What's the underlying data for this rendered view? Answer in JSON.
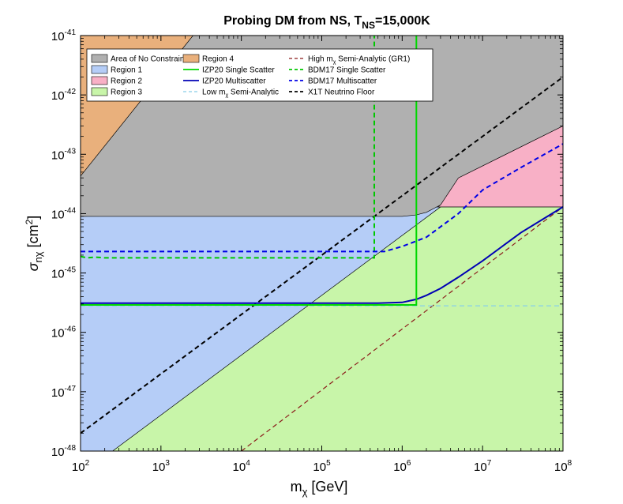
{
  "chart_data": {
    "type": "area",
    "title": {
      "main": "Probing DM from NS, T",
      "sub": "NS",
      "tail": "=15,000K"
    },
    "xaxis": {
      "label_main": "m",
      "label_sub": "χ",
      "label_tail": " [GeV]",
      "scale": "log",
      "lim": [
        100,
        100000000
      ],
      "tick_base": "10",
      "tick_exponents": [
        "2",
        "3",
        "4",
        "5",
        "6",
        "7",
        "8"
      ]
    },
    "yaxis": {
      "label_sigma": "σ",
      "label_sub": "nχ",
      "label_unit_open": " [cm",
      "label_unit_sup": "2",
      "label_unit_close": "]",
      "scale": "log",
      "lim": [
        1e-48,
        1e-41
      ],
      "tick_base": "10",
      "tick_exponents": [
        "-48",
        "-47",
        "-46",
        "-45",
        "-44",
        "-43",
        "-42",
        "-41"
      ]
    },
    "legend": {
      "placement": "top",
      "items": [
        {
          "key": "no-constraints",
          "kind": "patch",
          "label": "Area of No Constraints"
        },
        {
          "key": "region4",
          "kind": "patch",
          "label": "Region 4"
        },
        {
          "key": "high-semi",
          "kind": "line",
          "label_main": "High m",
          "label_sub": "χ",
          "label_tail": " Semi-Analytic (GR1)"
        },
        {
          "key": "region1",
          "kind": "patch",
          "label": "Region 1"
        },
        {
          "key": "izp-single",
          "kind": "line",
          "label": "IZP20 Single Scatter"
        },
        {
          "key": "bdm-single",
          "kind": "line",
          "label": "BDM17 Single Scatter"
        },
        {
          "key": "region2",
          "kind": "patch",
          "label": "Region 2"
        },
        {
          "key": "izp-multi",
          "kind": "line",
          "label": "IZP20 Multiscatter"
        },
        {
          "key": "bdm-multi",
          "kind": "line",
          "label": "BDM17 Multiscatter"
        },
        {
          "key": "region3",
          "kind": "patch",
          "label": "Region 3"
        },
        {
          "key": "low-semi",
          "kind": "line",
          "label_main": "Low m",
          "label_sub": "χ",
          "label_tail": " Semi-Analytic"
        },
        {
          "key": "x1t",
          "kind": "line",
          "label": "X1T Neutrino Floor"
        }
      ]
    },
    "regions": [
      {
        "key": "region3",
        "color": "#c8f5a9",
        "polygon": [
          [
            100,
            1e-48
          ],
          [
            100000000,
            1e-48
          ],
          [
            100000000,
            1.3e-44
          ],
          [
            3000000,
            1.3e-44
          ],
          [
            250,
            1e-48
          ]
        ]
      },
      {
        "key": "region1",
        "color": "#b5cdf7",
        "polygon": [
          [
            100,
            1e-48
          ],
          [
            250,
            1e-48
          ],
          [
            3000000,
            1.3e-44
          ],
          [
            100,
            9e-45
          ]
        ]
      },
      {
        "key": "region2",
        "color": "#f8b0c6",
        "polygon": [
          [
            2800000,
            1.3e-44
          ],
          [
            100000000,
            1.3e-44
          ],
          [
            100000000,
            3e-43
          ],
          [
            5000000,
            4e-44
          ],
          [
            3000000,
            1.4e-44
          ]
        ]
      },
      {
        "key": "no-constraints",
        "color": "#b0b0b0",
        "polygon": [
          [
            100,
            9e-45
          ],
          [
            1000000,
            9e-45
          ],
          [
            1500000,
            9.5e-45
          ],
          [
            2000000,
            1.05e-44
          ],
          [
            3000000,
            1.4e-44
          ],
          [
            5000000,
            4e-44
          ],
          [
            100000000,
            3e-43
          ],
          [
            100000000,
            1e-41
          ],
          [
            2500,
            1e-41
          ],
          [
            100,
            4.3e-44
          ]
        ]
      },
      {
        "key": "region4",
        "color": "#e9b07c",
        "polygon": [
          [
            100,
            4.3e-44
          ],
          [
            2500,
            1e-41
          ],
          [
            100,
            1e-41
          ]
        ]
      }
    ],
    "series": [
      {
        "key": "high-semi",
        "color": "#8b1a1a",
        "dash": "6,4",
        "width": 1.2,
        "x": [
          10000,
          100000000
        ],
        "y": [
          1e-48,
          1.3e-44
        ]
      },
      {
        "key": "low-semi",
        "color": "#87cee8",
        "dash": "6,4",
        "width": 1.2,
        "x": [
          100,
          100000000
        ],
        "y": [
          2.8e-46,
          2.8e-46
        ]
      },
      {
        "key": "x1t",
        "color": "#000000",
        "dash": "6,4",
        "width": 2,
        "x": [
          100,
          100000000
        ],
        "y": [
          2e-48,
          2e-42
        ]
      },
      {
        "key": "bdm-single",
        "color": "#00c800",
        "dash": "6,4",
        "width": 2,
        "x": [
          100,
          120,
          150,
          200,
          300,
          1000,
          10000,
          100000,
          450000,
          450000
        ],
        "y": [
          1.9e-45,
          1.8e-45,
          1.85e-45,
          1.8e-45,
          1.8e-45,
          1.8e-45,
          1.8e-45,
          1.8e-45,
          1.8e-45,
          1e-41
        ]
      },
      {
        "key": "bdm-multi",
        "color": "#0000e6",
        "dash": "6,4",
        "width": 2,
        "x": [
          100,
          600000,
          1000000,
          2000000,
          5000000,
          10000000,
          30000000,
          100000000
        ],
        "y": [
          2.3e-45,
          2.3e-45,
          2.8e-45,
          4e-45,
          1e-44,
          2.5e-44,
          6e-44,
          1.5e-43
        ]
      },
      {
        "key": "izp-multi",
        "color": "#0000b4",
        "dash": "",
        "width": 2,
        "x": [
          100,
          500000,
          1000000,
          1500000,
          2000000,
          3000000,
          5000000,
          10000000,
          30000000,
          100000000
        ],
        "y": [
          3.1e-46,
          3.1e-46,
          3.2e-46,
          3.6e-46,
          4.2e-46,
          5.5e-46,
          8.5e-46,
          1.6e-45,
          4.8e-45,
          1.3e-44
        ]
      },
      {
        "key": "izp-single",
        "color": "#00d800",
        "dash": "",
        "width": 2,
        "x": [
          100,
          1500000,
          1500000
        ],
        "y": [
          2.9e-46,
          2.9e-46,
          1e-41
        ]
      }
    ]
  }
}
